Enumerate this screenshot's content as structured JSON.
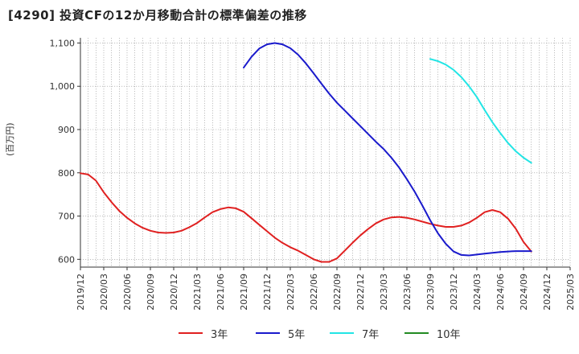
{
  "title": "[4290]  投資CFの12か月移動合計の標準偏差の推移",
  "chart_data": {
    "type": "line",
    "title": "[4290]  投資CFの12か月移動合計の標準偏差の推移",
    "ylabel": "(百万円)",
    "xlabel": "",
    "ylim": [
      582,
      1112
    ],
    "grid": true,
    "legend_position": "bottom",
    "x_tick_labels": [
      "2019/12",
      "2020/03",
      "2020/06",
      "2020/09",
      "2020/12",
      "2021/03",
      "2021/06",
      "2021/09",
      "2021/12",
      "2022/03",
      "2022/06",
      "2022/09",
      "2022/12",
      "2023/03",
      "2023/06",
      "2023/09",
      "2023/12",
      "2024/03",
      "2024/06",
      "2024/09",
      "2024/12",
      "2025/03"
    ],
    "y_ticks": [
      600,
      700,
      800,
      900,
      1000,
      1100
    ],
    "y_tick_labels": [
      "600",
      "700",
      "800",
      "900",
      "1,000",
      "1,100"
    ],
    "x_start": "2019-12",
    "series": [
      {
        "name": "3年",
        "color": "#e02020",
        "points": [
          [
            "2019-12",
            799
          ],
          [
            "2020-01",
            796
          ],
          [
            "2020-02",
            782
          ],
          [
            "2020-03",
            755
          ],
          [
            "2020-04",
            732
          ],
          [
            "2020-05",
            712
          ],
          [
            "2020-06",
            696
          ],
          [
            "2020-07",
            683
          ],
          [
            "2020-08",
            673
          ],
          [
            "2020-09",
            666
          ],
          [
            "2020-10",
            662
          ],
          [
            "2020-11",
            661
          ],
          [
            "2020-12",
            662
          ],
          [
            "2021-01",
            666
          ],
          [
            "2021-02",
            674
          ],
          [
            "2021-03",
            684
          ],
          [
            "2021-04",
            697
          ],
          [
            "2021-05",
            709
          ],
          [
            "2021-06",
            716
          ],
          [
            "2021-07",
            720
          ],
          [
            "2021-08",
            718
          ],
          [
            "2021-09",
            710
          ],
          [
            "2021-10",
            695
          ],
          [
            "2021-11",
            680
          ],
          [
            "2021-12",
            665
          ],
          [
            "2022-01",
            650
          ],
          [
            "2022-02",
            638
          ],
          [
            "2022-03",
            628
          ],
          [
            "2022-04",
            620
          ],
          [
            "2022-05",
            610
          ],
          [
            "2022-06",
            600
          ],
          [
            "2022-07",
            594
          ],
          [
            "2022-08",
            594
          ],
          [
            "2022-09",
            602
          ],
          [
            "2022-10",
            620
          ],
          [
            "2022-11",
            638
          ],
          [
            "2022-12",
            655
          ],
          [
            "2023-01",
            670
          ],
          [
            "2023-02",
            683
          ],
          [
            "2023-03",
            692
          ],
          [
            "2023-04",
            697
          ],
          [
            "2023-05",
            698
          ],
          [
            "2023-06",
            696
          ],
          [
            "2023-07",
            692
          ],
          [
            "2023-08",
            687
          ],
          [
            "2023-09",
            682
          ],
          [
            "2023-10",
            678
          ],
          [
            "2023-11",
            675
          ],
          [
            "2023-12",
            675
          ],
          [
            "2024-01",
            678
          ],
          [
            "2024-02",
            685
          ],
          [
            "2024-03",
            696
          ],
          [
            "2024-04",
            709
          ],
          [
            "2024-05",
            714
          ],
          [
            "2024-06",
            709
          ],
          [
            "2024-07",
            694
          ],
          [
            "2024-08",
            671
          ],
          [
            "2024-09",
            640
          ],
          [
            "2024-10",
            618
          ]
        ]
      },
      {
        "name": "5年",
        "color": "#1a1acc",
        "points": [
          [
            "2021-09",
            1043
          ],
          [
            "2021-10",
            1068
          ],
          [
            "2021-11",
            1087
          ],
          [
            "2021-12",
            1097
          ],
          [
            "2022-01",
            1100
          ],
          [
            "2022-02",
            1097
          ],
          [
            "2022-03",
            1088
          ],
          [
            "2022-04",
            1073
          ],
          [
            "2022-05",
            1053
          ],
          [
            "2022-06",
            1030
          ],
          [
            "2022-07",
            1006
          ],
          [
            "2022-08",
            983
          ],
          [
            "2022-09",
            962
          ],
          [
            "2022-10",
            944
          ],
          [
            "2022-11",
            926
          ],
          [
            "2022-12",
            908
          ],
          [
            "2023-01",
            890
          ],
          [
            "2023-02",
            872
          ],
          [
            "2023-03",
            855
          ],
          [
            "2023-04",
            835
          ],
          [
            "2023-05",
            812
          ],
          [
            "2023-06",
            785
          ],
          [
            "2023-07",
            756
          ],
          [
            "2023-08",
            724
          ],
          [
            "2023-09",
            690
          ],
          [
            "2023-10",
            660
          ],
          [
            "2023-11",
            636
          ],
          [
            "2023-12",
            618
          ],
          [
            "2024-01",
            610
          ],
          [
            "2024-02",
            609
          ],
          [
            "2024-03",
            611
          ],
          [
            "2024-04",
            613
          ],
          [
            "2024-05",
            615
          ],
          [
            "2024-06",
            617
          ],
          [
            "2024-07",
            618
          ],
          [
            "2024-08",
            619
          ],
          [
            "2024-09",
            619
          ],
          [
            "2024-10",
            619
          ]
        ]
      },
      {
        "name": "7年",
        "color": "#22e5e5",
        "points": [
          [
            "2023-09",
            1063
          ],
          [
            "2023-10",
            1058
          ],
          [
            "2023-11",
            1050
          ],
          [
            "2023-12",
            1038
          ],
          [
            "2024-01",
            1021
          ],
          [
            "2024-02",
            1000
          ],
          [
            "2024-03",
            975
          ],
          [
            "2024-04",
            945
          ],
          [
            "2024-05",
            917
          ],
          [
            "2024-06",
            892
          ],
          [
            "2024-07",
            869
          ],
          [
            "2024-08",
            850
          ],
          [
            "2024-09",
            835
          ],
          [
            "2024-10",
            823
          ]
        ]
      },
      {
        "name": "10年",
        "color": "#228b22",
        "points": []
      }
    ]
  }
}
